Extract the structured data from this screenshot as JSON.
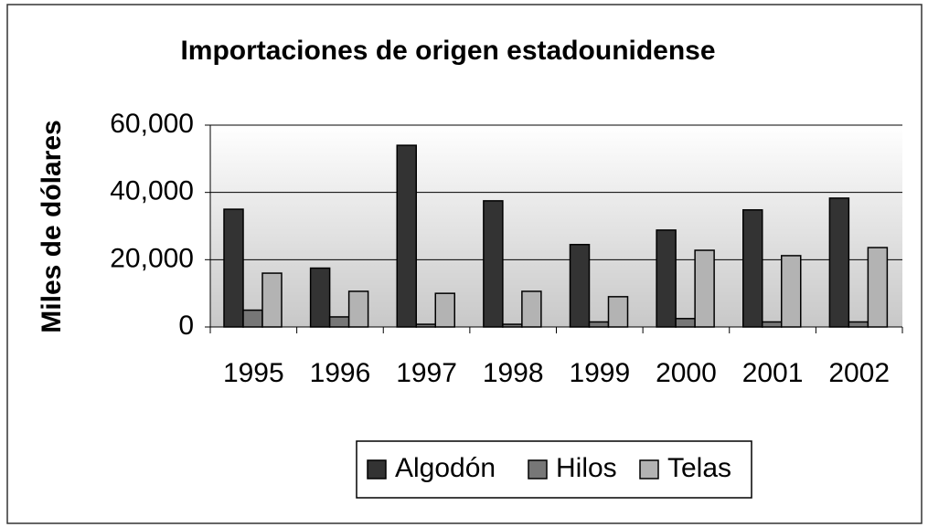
{
  "chart_data": {
    "type": "bar",
    "title": "Importaciones de origen estadounidense",
    "y_label": "Miles de dólares",
    "categories": [
      "1995",
      "1996",
      "1997",
      "1998",
      "1999",
      "2000",
      "2001",
      "2002"
    ],
    "series": [
      {
        "name": "Algodón",
        "color": "#333333",
        "values": [
          35000,
          17500,
          54000,
          37500,
          24500,
          28800,
          34800,
          38300
        ]
      },
      {
        "name": "Hilos",
        "color": "#777777",
        "values": [
          5000,
          3000,
          800,
          800,
          1500,
          2500,
          1500,
          1500
        ]
      },
      {
        "name": "Telas",
        "color": "#b3b3b3",
        "values": [
          16000,
          10600,
          10000,
          10600,
          9000,
          22800,
          21200,
          23600
        ]
      }
    ],
    "ylim": [
      0,
      60000
    ],
    "yticks": [
      0,
      {
        "value": 20000,
        "label": "20,000"
      },
      {
        "value": 40000,
        "label": "40,000"
      },
      {
        "value": 60000,
        "label": "60,000"
      }
    ],
    "grid": true,
    "legend": "bottom"
  }
}
